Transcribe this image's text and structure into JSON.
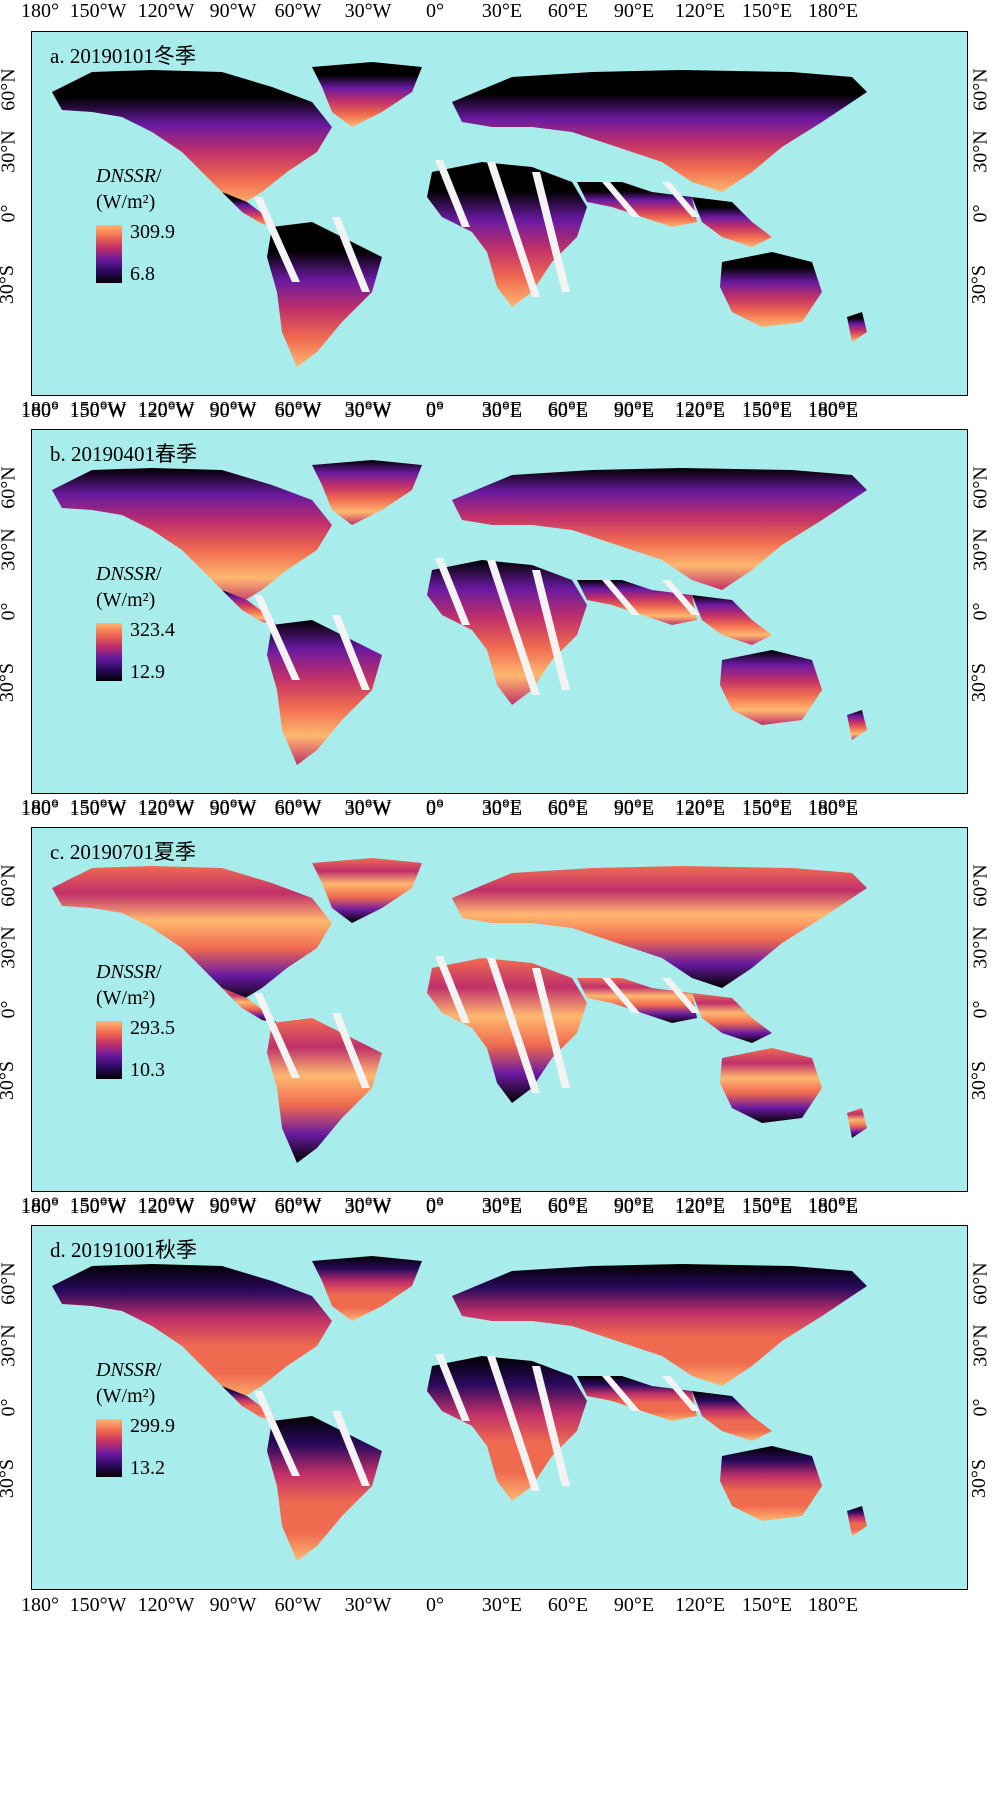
{
  "axes": {
    "lon_ticks": [
      "180°",
      "150°W",
      "120°W",
      "90°W",
      "60°W",
      "30°W",
      "0°",
      "30°E",
      "60°E",
      "90°E",
      "120°E",
      "150°E",
      "180°E"
    ],
    "lon_ticks_bottom": [
      "180°",
      "150°W",
      "120°W",
      "90°W",
      "60°W",
      "30°W",
      "0°",
      "30°E",
      "60°E",
      "90°E",
      "120°E",
      "150°E",
      "180°E"
    ],
    "lat_ticks_left": [
      "60°N",
      "30°N",
      "0°",
      "30°S"
    ],
    "lat_ticks_right": [
      "60°N",
      "30°N",
      "0°",
      "30°S"
    ]
  },
  "colors": {
    "ocean": "#a9ecec",
    "colormap": [
      "#000000",
      "#2b0a5e",
      "#6a1aa0",
      "#c0306a",
      "#f06a50",
      "#ffb870"
    ]
  },
  "panels": [
    {
      "label": "a. 20190101冬季",
      "legend_title": "DNSSR",
      "legend_unit": "(W/m²)",
      "max": "309.9",
      "min": "6.8"
    },
    {
      "label": "b. 20190401春季",
      "legend_title": "DNSSR",
      "legend_unit": "(W/m²)",
      "max": "323.4",
      "min": "12.9"
    },
    {
      "label": "c. 20190701夏季",
      "legend_title": "DNSSR",
      "legend_unit": "(W/m²)",
      "max": "293.5",
      "min": "10.3"
    },
    {
      "label": "d. 20191001秋季",
      "legend_title": "DNSSR",
      "legend_unit": "(W/m²)",
      "max": "299.9",
      "min": "13.2"
    }
  ]
}
